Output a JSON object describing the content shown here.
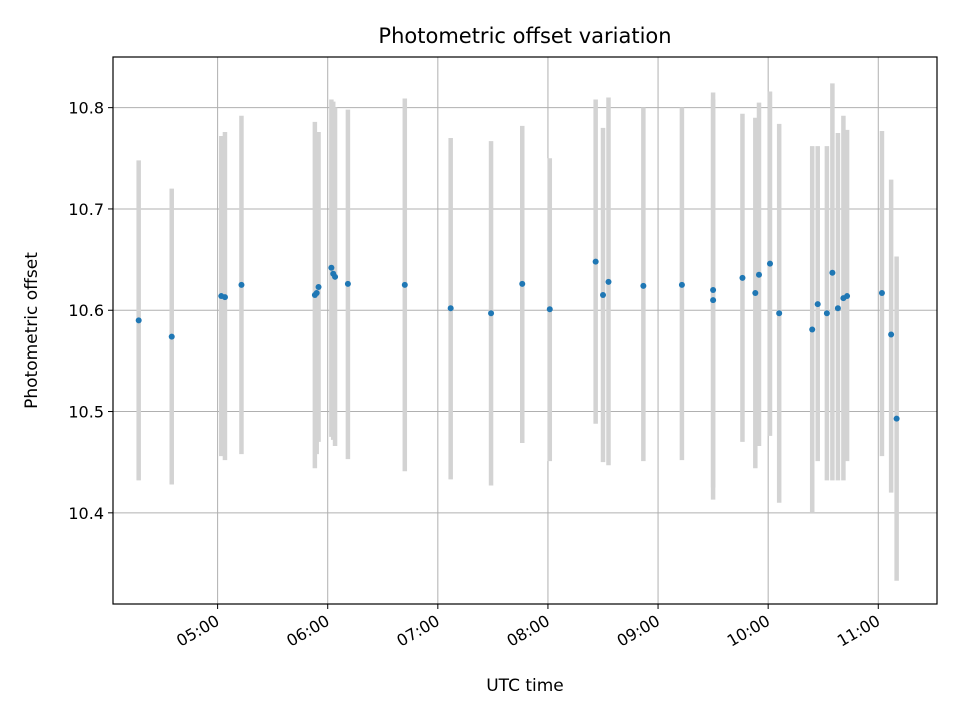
{
  "chart_data": {
    "type": "scatter",
    "title": "Photometric offset variation",
    "xlabel": "UTC time",
    "ylabel": "Photometric offset",
    "x_tick_labels": [
      "05:00",
      "06:00",
      "07:00",
      "08:00",
      "09:00",
      "10:00",
      "11:00"
    ],
    "x_ticks": [
      "05:00",
      "06:00",
      "07:00",
      "08:00",
      "09:00",
      "10:00",
      "11:00"
    ],
    "y_ticks": [
      10.4,
      10.5,
      10.6,
      10.7,
      10.8
    ],
    "y_tick_labels": [
      "10.4",
      "10.5",
      "10.6",
      "10.7",
      "10.8"
    ],
    "xlim": [
      "04:03",
      "11:32"
    ],
    "ylim": [
      10.31,
      10.85
    ],
    "grid": true,
    "colors": {
      "point": "#1f77b4",
      "errorbar": "#d3d3d3",
      "grid": "#b0b0b0"
    },
    "points": [
      {
        "x": "04:17",
        "y": 10.59,
        "lo": 10.432,
        "hi": 10.748
      },
      {
        "x": "04:35",
        "y": 10.574,
        "lo": 10.428,
        "hi": 10.72
      },
      {
        "x": "05:02",
        "y": 10.614,
        "lo": 10.456,
        "hi": 10.772
      },
      {
        "x": "05:04",
        "y": 10.613,
        "lo": 10.452,
        "hi": 10.776
      },
      {
        "x": "05:13",
        "y": 10.625,
        "lo": 10.458,
        "hi": 10.792
      },
      {
        "x": "05:53",
        "y": 10.615,
        "lo": 10.444,
        "hi": 10.786
      },
      {
        "x": "05:54",
        "y": 10.617,
        "lo": 10.458,
        "hi": 10.776
      },
      {
        "x": "05:55",
        "y": 10.623,
        "lo": 10.47,
        "hi": 10.776
      },
      {
        "x": "06:02",
        "y": 10.642,
        "lo": 10.475,
        "hi": 10.808
      },
      {
        "x": "06:03",
        "y": 10.636,
        "lo": 10.472,
        "hi": 10.806
      },
      {
        "x": "06:04",
        "y": 10.633,
        "lo": 10.466,
        "hi": 10.8
      },
      {
        "x": "06:11",
        "y": 10.626,
        "lo": 10.453,
        "hi": 10.798
      },
      {
        "x": "06:42",
        "y": 10.625,
        "lo": 10.441,
        "hi": 10.809
      },
      {
        "x": "07:07",
        "y": 10.602,
        "lo": 10.433,
        "hi": 10.77
      },
      {
        "x": "07:29",
        "y": 10.597,
        "lo": 10.427,
        "hi": 10.767
      },
      {
        "x": "07:46",
        "y": 10.626,
        "lo": 10.469,
        "hi": 10.782
      },
      {
        "x": "08:01",
        "y": 10.601,
        "lo": 10.451,
        "hi": 10.75
      },
      {
        "x": "08:26",
        "y": 10.648,
        "lo": 10.488,
        "hi": 10.808
      },
      {
        "x": "08:30",
        "y": 10.615,
        "lo": 10.45,
        "hi": 10.78
      },
      {
        "x": "08:33",
        "y": 10.628,
        "lo": 10.447,
        "hi": 10.81
      },
      {
        "x": "08:52",
        "y": 10.624,
        "lo": 10.451,
        "hi": 10.8
      },
      {
        "x": "09:13",
        "y": 10.625,
        "lo": 10.452,
        "hi": 10.8
      },
      {
        "x": "09:30",
        "y": 10.61,
        "lo": 10.413,
        "hi": 10.808
      },
      {
        "x": "09:30",
        "y": 10.62,
        "lo": 10.425,
        "hi": 10.815
      },
      {
        "x": "09:46",
        "y": 10.632,
        "lo": 10.47,
        "hi": 10.794
      },
      {
        "x": "09:53",
        "y": 10.617,
        "lo": 10.444,
        "hi": 10.79
      },
      {
        "x": "09:55",
        "y": 10.635,
        "lo": 10.466,
        "hi": 10.805
      },
      {
        "x": "10:01",
        "y": 10.646,
        "lo": 10.476,
        "hi": 10.816
      },
      {
        "x": "10:06",
        "y": 10.597,
        "lo": 10.41,
        "hi": 10.784
      },
      {
        "x": "10:24",
        "y": 10.581,
        "lo": 10.4,
        "hi": 10.762
      },
      {
        "x": "10:27",
        "y": 10.606,
        "lo": 10.451,
        "hi": 10.762
      },
      {
        "x": "10:32",
        "y": 10.597,
        "lo": 10.432,
        "hi": 10.762
      },
      {
        "x": "10:35",
        "y": 10.637,
        "lo": 10.432,
        "hi": 10.824
      },
      {
        "x": "10:38",
        "y": 10.602,
        "lo": 10.432,
        "hi": 10.775
      },
      {
        "x": "10:41",
        "y": 10.612,
        "lo": 10.432,
        "hi": 10.792
      },
      {
        "x": "10:43",
        "y": 10.614,
        "lo": 10.451,
        "hi": 10.778
      },
      {
        "x": "11:02",
        "y": 10.617,
        "lo": 10.456,
        "hi": 10.777
      },
      {
        "x": "11:07",
        "y": 10.576,
        "lo": 10.42,
        "hi": 10.729
      },
      {
        "x": "11:10",
        "y": 10.493,
        "lo": 10.333,
        "hi": 10.653
      }
    ]
  }
}
